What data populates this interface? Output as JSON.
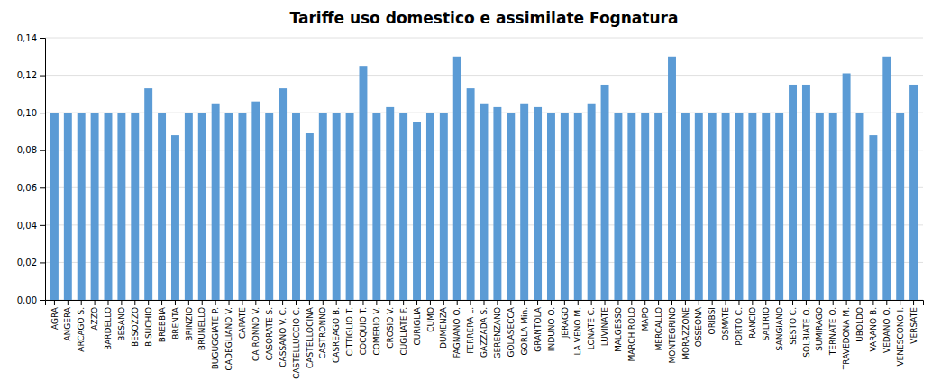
{
  "chart_data": {
    "type": "bar",
    "title": "Tariffe uso domestico e assimilate Fognatura",
    "categories": [
      "AGRA",
      "ANGERA",
      "ARCAGO S.",
      "AZZO",
      "BARDELLO",
      "BESANO",
      "BESOZZO",
      "BISUCHIO",
      "BREBBIA",
      "BRENTA",
      "BRINZIO",
      "BRUNELLO",
      "BUGUGGIATE P.",
      "CADEGLIANO V.",
      "CARATE",
      "CA RONNO V.",
      "CASORATE S.",
      "CASSANO V. C.",
      "CASTELLUCCIO C.",
      "CASTELLOCINA",
      "CASTRONNO",
      "CASREAGO B.",
      "CITTIGLIO T.",
      "COCQUIO T.",
      "COMERIO V.",
      "CROSIO V.",
      "CUGLIATE F.",
      "CURIGLIA",
      "CUMO",
      "DUMENZA",
      "FAGNANO O.",
      "FERRERA L.",
      "GAZZADA S.",
      "GERENZANO",
      "GOLASECCA",
      "GORLA Min.",
      "GRANTOLA",
      "INDUNO O.",
      "JERAGO",
      "LA VENO M.",
      "LONATE C.",
      "LUVINATE",
      "MALGESSO",
      "MARCHIROLO",
      "MAPO",
      "MERCALLO",
      "MONTEGRINO",
      "MORAZZONE",
      "OSSEONA",
      "ORIBSI",
      "OSMATE",
      "PORTO C.",
      "RANCIO",
      "SALTRIO",
      "SANGIANO",
      "SESTO C.",
      "SOLBIATE O.",
      "SUMIRAGO",
      "TERNATE O.",
      "TRAVEDONA M.",
      "UBOLDO",
      "VARANO B.",
      "VEDANO O.",
      "VENESCONO I.",
      "VERSATE"
    ],
    "values": [
      0.1,
      0.1,
      0.1,
      0.1,
      0.1,
      0.1,
      0.1,
      0.113,
      0.1,
      0.088,
      0.1,
      0.1,
      0.105,
      0.1,
      0.1,
      0.106,
      0.1,
      0.113,
      0.1,
      0.089,
      0.1,
      0.1,
      0.1,
      0.125,
      0.1,
      0.103,
      0.1,
      0.095,
      0.1,
      0.1,
      0.13,
      0.113,
      0.105,
      0.103,
      0.1,
      0.105,
      0.103,
      0.1,
      0.1,
      0.1,
      0.105,
      0.115,
      0.1,
      0.1,
      0.1,
      0.1,
      0.13,
      0.1,
      0.1,
      0.1,
      0.1,
      0.1,
      0.1,
      0.1,
      0.1,
      0.115,
      0.115,
      0.1,
      0.1,
      0.121,
      0.1,
      0.088,
      0.13,
      0.1,
      0.115
    ],
    "color": "#5B9BD5",
    "ylim": [
      0,
      0.14
    ],
    "yticks": [
      {
        "value": 0.0,
        "label": "0,00"
      },
      {
        "value": 0.02,
        "label": "0,02"
      },
      {
        "value": 0.04,
        "label": "0,04"
      },
      {
        "value": 0.06,
        "label": "0,06"
      },
      {
        "value": 0.08,
        "label": "0,08"
      },
      {
        "value": 0.1,
        "label": "0,10"
      },
      {
        "value": 0.12,
        "label": "0,12"
      },
      {
        "value": 0.14,
        "label": "0,14"
      }
    ],
    "grid": true
  }
}
